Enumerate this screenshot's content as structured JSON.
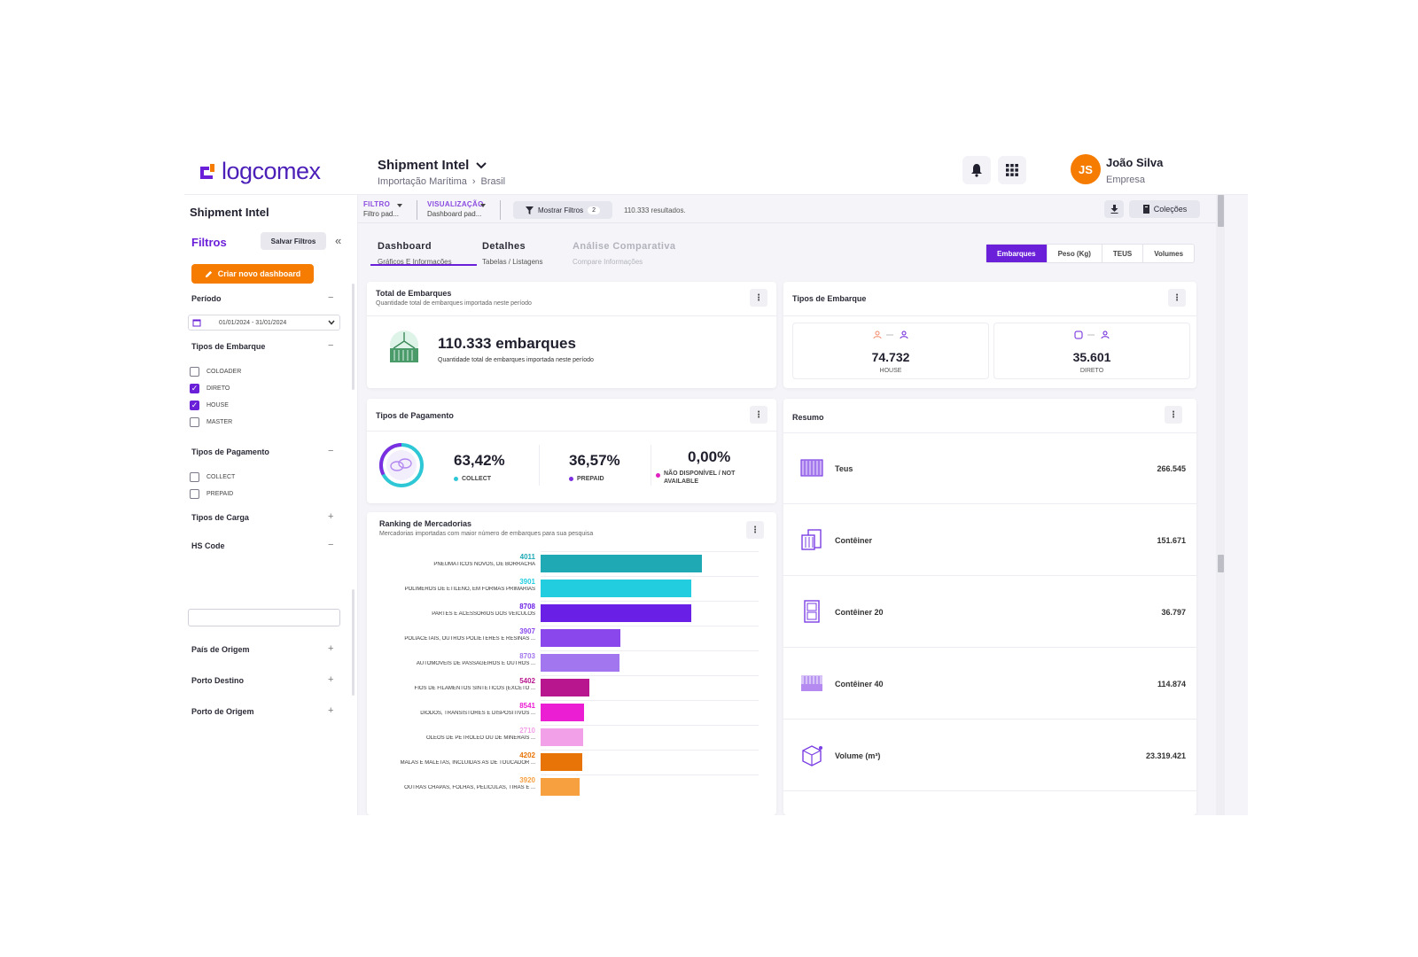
{
  "brand": {
    "logo_text": "logcomex",
    "accent": "#6a1fd8",
    "orange": "#f57c00"
  },
  "header": {
    "app_name": "Shipment Intel",
    "crumb_1": "Importação Marítima",
    "crumb_sep": "›",
    "crumb_2": "Brasil",
    "bell_icon": "bell-icon",
    "apps_icon": "grid-icon",
    "user_initials": "JS",
    "user_name": "João Silva",
    "company": "Empresa"
  },
  "sidebar": {
    "title": "Shipment Intel",
    "filtros": "Filtros",
    "save_label": "Salvar Filtros",
    "collapse": "«",
    "create_label": "Criar novo dashboard",
    "periodo": "Período",
    "date_range": "01/01/2024 - 31/01/2024",
    "tipos_embarque": "Tipos de Embarque",
    "embarque_options": [
      {
        "label": "COLOADER",
        "checked": false
      },
      {
        "label": "DIRETO",
        "checked": true
      },
      {
        "label": "HOUSE",
        "checked": true
      },
      {
        "label": "MASTER",
        "checked": false
      }
    ],
    "tipos_pagamento": "Tipos de Pagamento",
    "pagamento_options": [
      {
        "label": "COLLECT",
        "checked": false
      },
      {
        "label": "PREPAID",
        "checked": false
      }
    ],
    "tipos_carga": "Tipos de Carga",
    "hs_code": "HS Code",
    "pais_origem": "País de Origem",
    "porto_destino": "Porto Destino",
    "porto_origem": "Porto de Origem",
    "minus": "−",
    "plus": "+"
  },
  "filterbar": {
    "filtro_label": "FILTRO",
    "filtro_value": "Filtro pad...",
    "vis_label": "VISUALIZAÇÃO",
    "vis_value": "Dashboard pad...",
    "show_filters": "Mostrar Filtros",
    "filters_count": "2",
    "results": "110.333 resultados.",
    "collections": "Coleções"
  },
  "tabs": [
    {
      "title": "Dashboard",
      "sub": "Gráficos E Informações"
    },
    {
      "title": "Detalhes",
      "sub": "Tabelas / Listagens"
    },
    {
      "title": "Análise Comparativa",
      "sub": "Compare Informações"
    }
  ],
  "metric_toggle": [
    "Embarques",
    "Peso (Kg)",
    "TEUS",
    "Volumes"
  ],
  "total": {
    "title": "Total de Embarques",
    "subtitle": "Quantidade total de embarques importada neste período",
    "value": "110.333 embarques",
    "value_sub": "Quantidade total de embarques importada neste período"
  },
  "tipos_embarque": {
    "title": "Tipos de Embarque",
    "items": [
      {
        "value": "74.732",
        "label": "HOUSE"
      },
      {
        "value": "35.601",
        "label": "DIRETO"
      }
    ]
  },
  "pagamento": {
    "title": "Tipos de Pagamento",
    "items": [
      {
        "value": "63,42%",
        "label": "COLLECT",
        "color": "#2ec7d6"
      },
      {
        "value": "36,57%",
        "label": "PREPAID",
        "color": "#7b2fe0"
      },
      {
        "value": "0,00%",
        "label": "NÃO DISPONÍVEL / NOT AVAILABLE",
        "color": "#e020c0"
      }
    ]
  },
  "resumo": {
    "title": "Resumo",
    "rows": [
      {
        "label": "Teus",
        "value": "266.545"
      },
      {
        "label": "Contêiner",
        "value": "151.671"
      },
      {
        "label": "Contêiner 20",
        "value": "36.797"
      },
      {
        "label": "Contêiner 40",
        "value": "114.874"
      },
      {
        "label": "Volume (m³)",
        "value": "23.319.421"
      }
    ]
  },
  "ranking": {
    "title": "Ranking de Mercadorias",
    "subtitle": "Mercadorias importadas com maior número de embarques para sua pesquisa"
  },
  "chart_data": {
    "type": "bar",
    "orientation": "horizontal",
    "title": "Ranking de Mercadorias",
    "categories": [
      {
        "code": "4011",
        "name": "PNEUMÁTICOS NOVOS, DE BORRACHA",
        "color": "#1fa9b5"
      },
      {
        "code": "3901",
        "name": "POLÍMEROS DE ETILENO, EM FORMAS PRIMÁRIAS",
        "color": "#22cde0"
      },
      {
        "code": "8708",
        "name": "PARTES E ACESSÓRIOS DOS VEÍCULOS",
        "color": "#6a1fe6"
      },
      {
        "code": "3907",
        "name": "POLIACETAIS, OUTROS POLIÉTERES E RESINAS ...",
        "color": "#8a48ec"
      },
      {
        "code": "8703",
        "name": "AUTOMÓVEIS DE PASSAGEIROS E OUTROS ...",
        "color": "#a276ee"
      },
      {
        "code": "5402",
        "name": "FIOS DE FILAMENTOS SINTÉTICOS (EXCETO ...",
        "color": "#b8168e"
      },
      {
        "code": "8541",
        "name": "DÍODOS, TRANSÍSTORES E DISPOSITIVOS ...",
        "color": "#ec1ed4"
      },
      {
        "code": "2710",
        "name": "ÓLEOS DE PETRÓLEO OU DE MINERAIS ...",
        "color": "#f2a0e8"
      },
      {
        "code": "4202",
        "name": "MALAS E MALETAS, INCLUÍDAS AS DE TOUCADOR ...",
        "color": "#e87408"
      },
      {
        "code": "3920",
        "name": "OUTRAS CHAPAS, FOLHAS, PELÍCULAS, TIRAS E ...",
        "color": "#f7a040"
      }
    ],
    "values": [
      7400,
      6900,
      6900,
      3650,
      3600,
      2250,
      2000,
      1950,
      1900,
      1800
    ],
    "xlim": [
      0,
      10000
    ]
  }
}
